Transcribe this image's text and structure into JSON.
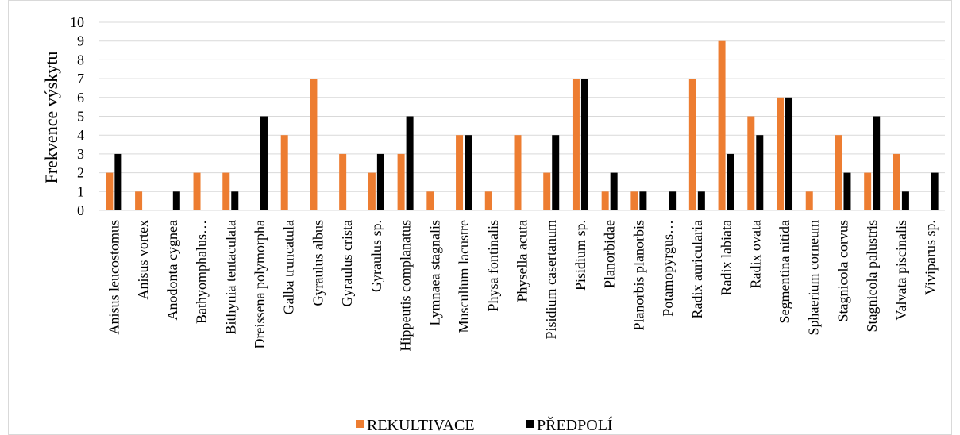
{
  "chart_data": {
    "type": "bar",
    "title": "",
    "xlabel": "",
    "ylabel": "Frekvence výskytu",
    "ylim": [
      0,
      10
    ],
    "yticks": [
      0,
      1,
      2,
      3,
      4,
      5,
      6,
      7,
      8,
      9,
      10
    ],
    "grid": true,
    "legend_position": "bottom",
    "categories": [
      "Anisus leucostomus",
      "Anisus vortex",
      "Anodonta cygnea",
      "Bathyomphalus…",
      "Bithynia tentaculata",
      "Dreissena polymorpha",
      "Galba truncatula",
      "Gyraulus albus",
      "Gyraulus crista",
      "Gyraulus sp.",
      "Hippeutis complanatus",
      "Lymnaea stagnalis",
      "Musculium lacustre",
      "Physa fontinalis",
      "Physella acuta",
      "Pisidium casertanum",
      "Pisidium sp.",
      "Planorbidae",
      "Planorbis planorbis",
      "Potamopyrgus…",
      "Radix auricularia",
      "Radix labiata",
      "Radix ovata",
      "Segmentina nitida",
      "Sphaerium corneum",
      "Stagnicola corvus",
      "Stagnicola palustris",
      "Valvata piscinalis",
      "Viviparus sp."
    ],
    "series": [
      {
        "name": "REKULTIVACE",
        "color": "#ED7D31",
        "values": [
          2,
          1,
          0,
          2,
          2,
          0,
          4,
          7,
          3,
          2,
          3,
          1,
          4,
          1,
          4,
          2,
          7,
          1,
          1,
          0,
          7,
          9,
          5,
          6,
          1,
          4,
          2,
          3,
          0
        ]
      },
      {
        "name": "PŘEDPOLÍ",
        "color": "#000000",
        "values": [
          3,
          0,
          1,
          0,
          1,
          5,
          0,
          0,
          0,
          3,
          5,
          0,
          4,
          0,
          0,
          4,
          7,
          2,
          1,
          1,
          1,
          3,
          4,
          6,
          0,
          2,
          5,
          1,
          2
        ]
      }
    ]
  }
}
